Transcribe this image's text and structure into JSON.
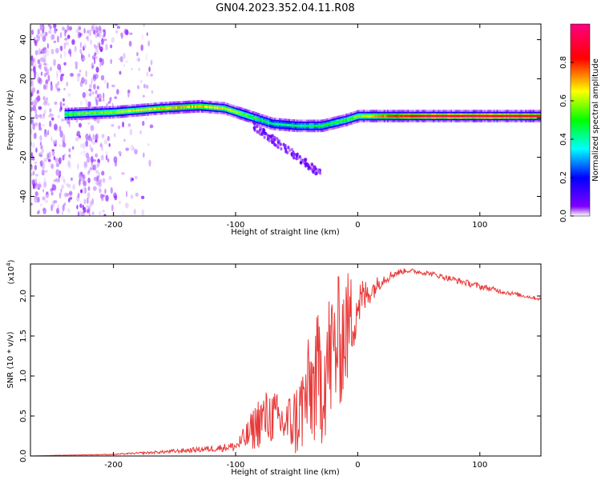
{
  "figure": {
    "title": "GN04.2023.352.04.11.R08"
  },
  "chart_data": [
    {
      "type": "heatmap",
      "xlabel": "Height of straight line (km)",
      "ylabel": "Frequency (Hz)",
      "xlim": [
        -268,
        150
      ],
      "ylim": [
        -50,
        48
      ],
      "xticks": [
        -200,
        -100,
        0,
        100
      ],
      "yticks": [
        -40,
        -20,
        0,
        20,
        40
      ],
      "colorbar": {
        "label": "Normalized spectral amplitude",
        "range": [
          0.0,
          1.0
        ],
        "ticks": [
          "0.0",
          "0.2",
          "0.4",
          "0.6",
          "0.8"
        ],
        "tick_values": [
          0.0,
          0.2,
          0.4,
          0.6,
          0.8
        ],
        "colors": [
          "#ffffff",
          "#8000ff",
          "#0000ff",
          "#00ffff",
          "#00ff00",
          "#ffff00",
          "#ff0000",
          "#ff0080"
        ]
      },
      "ridge": {
        "x": [
          -240,
          -200,
          -160,
          -130,
          -110,
          -90,
          -70,
          -50,
          -30,
          -10,
          0,
          20,
          60,
          100,
          150
        ],
        "frequency": [
          2,
          3,
          5,
          6,
          5,
          1,
          -3,
          -4,
          -4,
          -1,
          1,
          1,
          1,
          1,
          1
        ],
        "amplitude": [
          0.6,
          0.65,
          0.75,
          0.75,
          0.7,
          0.6,
          0.5,
          0.5,
          0.55,
          0.6,
          0.65,
          0.8,
          0.95,
          0.95,
          0.9
        ]
      },
      "notes_visible": []
    },
    {
      "type": "line",
      "xlabel": "Height of straight line (km)",
      "ylabel": "SNR (10 * v/v)",
      "multiplier": "(x10",
      "multiplier_exp": "4",
      "multiplier_close": ")",
      "xlim": [
        -268,
        150
      ],
      "ylim": [
        0,
        2.4
      ],
      "xticks": [
        -200,
        -100,
        0,
        100
      ],
      "yticks": [
        "0.0",
        "0.5",
        "1.0",
        "1.5",
        "2.0"
      ],
      "ytick_values": [
        0.0,
        0.5,
        1.0,
        1.5,
        2.0
      ],
      "color": "#e83a3a",
      "series": [
        {
          "x": [
            -268,
            -240,
            -200,
            -160,
            -140,
            -120,
            -100,
            -90,
            -80,
            -70,
            -60,
            -50,
            -40,
            -30,
            -20,
            -10,
            0,
            10,
            20,
            30,
            40,
            60,
            80,
            100,
            120,
            150
          ],
          "values": [
            0.0,
            0.01,
            0.02,
            0.05,
            0.07,
            0.09,
            0.12,
            0.25,
            0.45,
            0.5,
            0.4,
            0.45,
            0.8,
            1.0,
            1.3,
            1.55,
            1.9,
            2.05,
            2.2,
            2.28,
            2.32,
            2.28,
            2.2,
            2.12,
            2.05,
            1.96
          ],
          "noise": [
            0.0,
            0.003,
            0.006,
            0.02,
            0.03,
            0.04,
            0.06,
            0.2,
            0.35,
            0.35,
            0.3,
            0.5,
            0.7,
            0.9,
            0.9,
            0.8,
            0.35,
            0.15,
            0.08,
            0.05,
            0.03,
            0.03,
            0.04,
            0.04,
            0.03,
            0.02
          ]
        }
      ]
    }
  ]
}
